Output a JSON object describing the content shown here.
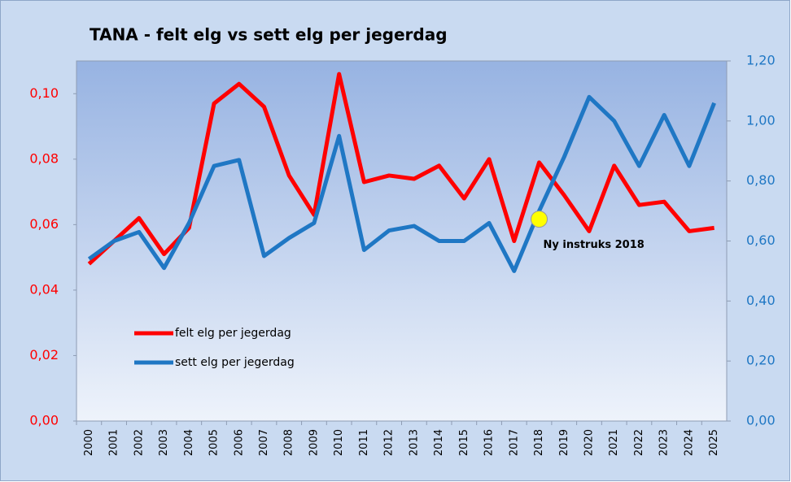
{
  "chart_data": {
    "type": "line",
    "title": "TANA - felt elg vs sett elg per jegerdag",
    "categories": [
      "2000",
      "2001",
      "2002",
      "2003",
      "2004",
      "2005",
      "2006",
      "2007",
      "2008",
      "2009",
      "2010",
      "2011",
      "2012",
      "2013",
      "2014",
      "2015",
      "2016",
      "2017",
      "2018",
      "2019",
      "2020",
      "2021",
      "2022",
      "2023",
      "2024",
      "2025"
    ],
    "series": [
      {
        "name": "felt elg per jegerdag",
        "color": "#ff0000",
        "axis": "y",
        "values": [
          0.048,
          0.055,
          0.062,
          0.051,
          0.059,
          0.097,
          0.103,
          0.096,
          0.075,
          0.063,
          0.106,
          0.073,
          0.075,
          0.074,
          0.078,
          0.068,
          0.08,
          0.055,
          0.079,
          0.069,
          0.058,
          0.078,
          0.066,
          0.067,
          0.058,
          0.059
        ]
      },
      {
        "name": "sett elg per jegerdag",
        "color": "#1f77c4",
        "axis": "y2",
        "values": [
          0.54,
          0.6,
          0.63,
          0.51,
          0.66,
          0.85,
          0.87,
          0.55,
          0.61,
          0.66,
          0.95,
          0.57,
          0.635,
          0.65,
          0.6,
          0.6,
          0.66,
          0.5,
          0.7,
          0.88,
          1.08,
          1.0,
          0.85,
          1.02,
          0.85,
          1.06
        ]
      }
    ],
    "ylim": [
      0,
      0.11
    ],
    "yticks": [
      {
        "value": 0,
        "label": "0,00"
      },
      {
        "value": 0.02,
        "label": "0,02"
      },
      {
        "value": 0.04,
        "label": "0,04"
      },
      {
        "value": 0.06,
        "label": "0,06"
      },
      {
        "value": 0.08,
        "label": "0,08"
      },
      {
        "value": 0.1,
        "label": "0,10"
      }
    ],
    "y2lim": [
      0,
      1.2
    ],
    "y2ticks": [
      {
        "value": 0,
        "label": "0,00"
      },
      {
        "value": 0.2,
        "label": "0,20"
      },
      {
        "value": 0.4,
        "label": "0,40"
      },
      {
        "value": 0.6,
        "label": "0,60"
      },
      {
        "value": 0.8,
        "label": "0,80"
      },
      {
        "value": 1.0,
        "label": "1,00"
      },
      {
        "value": 1.2,
        "label": "1,20"
      }
    ],
    "annotation": "Ny instruks 2018",
    "legend": "lower left"
  }
}
